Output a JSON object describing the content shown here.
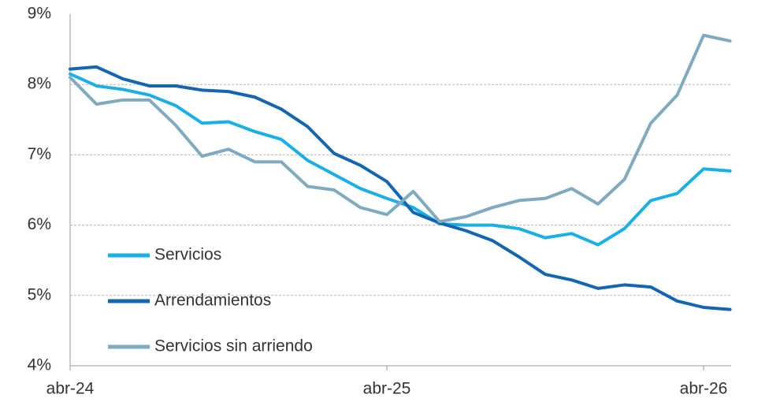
{
  "chart_data": {
    "type": "line",
    "categories": [
      "abr-24",
      null,
      null,
      null,
      null,
      null,
      null,
      null,
      null,
      null,
      null,
      null,
      "abr-25",
      null,
      null,
      null,
      null,
      null,
      null,
      null,
      null,
      null,
      null,
      null,
      "abr-26",
      null
    ],
    "series": [
      {
        "name": "Servicios",
        "color": "#1aafe6",
        "values": [
          8.15,
          7.98,
          7.93,
          7.85,
          7.7,
          7.45,
          7.47,
          7.33,
          7.22,
          6.92,
          6.72,
          6.52,
          6.38,
          6.25,
          6.02,
          6.0,
          6.0,
          5.95,
          5.82,
          5.88,
          5.72,
          5.95,
          6.35,
          6.45,
          6.8,
          6.77
        ]
      },
      {
        "name": "Arrendamientos",
        "color": "#1466b0",
        "values": [
          8.22,
          8.25,
          8.08,
          7.98,
          7.98,
          7.92,
          7.9,
          7.82,
          7.65,
          7.4,
          7.02,
          6.85,
          6.62,
          6.18,
          6.03,
          5.92,
          5.78,
          5.55,
          5.3,
          5.22,
          5.1,
          5.15,
          5.12,
          4.92,
          4.83,
          4.8
        ]
      },
      {
        "name": "Servicios sin arriendo",
        "color": "#7faabf",
        "values": [
          8.1,
          7.72,
          7.78,
          7.78,
          7.42,
          6.98,
          7.08,
          6.9,
          6.9,
          6.55,
          6.5,
          6.25,
          6.15,
          6.48,
          6.05,
          6.12,
          6.25,
          6.35,
          6.38,
          6.52,
          6.3,
          6.65,
          7.45,
          7.85,
          8.7,
          8.62
        ]
      }
    ],
    "ylim": [
      4,
      9
    ],
    "yticks": [
      {
        "value": 4,
        "label": "4%"
      },
      {
        "value": 5,
        "label": "5%"
      },
      {
        "value": 6,
        "label": "6%"
      },
      {
        "value": 7,
        "label": "7%"
      },
      {
        "value": 8,
        "label": "8%"
      },
      {
        "value": 9,
        "label": "9%"
      }
    ],
    "grid": true,
    "legend": "lower left"
  }
}
